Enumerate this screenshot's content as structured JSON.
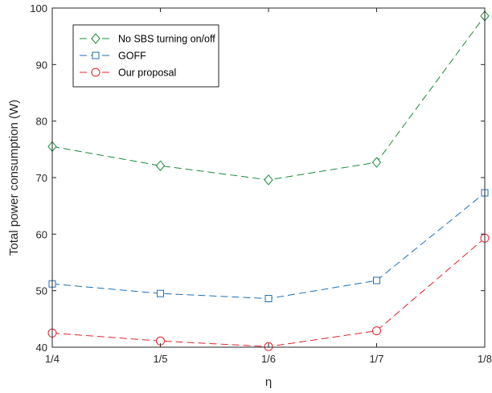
{
  "chart_data": {
    "type": "line",
    "title": "",
    "xlabel": "η",
    "ylabel": "Total power consumption (W)",
    "categories": [
      "1/4",
      "1/5",
      "1/6",
      "1/7",
      "1/8"
    ],
    "ylim": [
      40,
      100
    ],
    "yticks": [
      40,
      50,
      60,
      70,
      80,
      90,
      100
    ],
    "grid": false,
    "legend_position": "top-left",
    "series": [
      {
        "name": "No SBS turning on/off",
        "marker": "diamond",
        "color": "#1a8a3a",
        "values": [
          75.5,
          72.1,
          69.6,
          72.7,
          98.6
        ]
      },
      {
        "name": "GOFF",
        "marker": "square",
        "color": "#1f6fb5",
        "values": [
          51.2,
          49.5,
          48.6,
          51.8,
          67.3
        ]
      },
      {
        "name": "Our proposal",
        "marker": "circle",
        "color": "#e0242b",
        "values": [
          42.5,
          41.1,
          40.1,
          42.9,
          59.3
        ]
      }
    ]
  }
}
